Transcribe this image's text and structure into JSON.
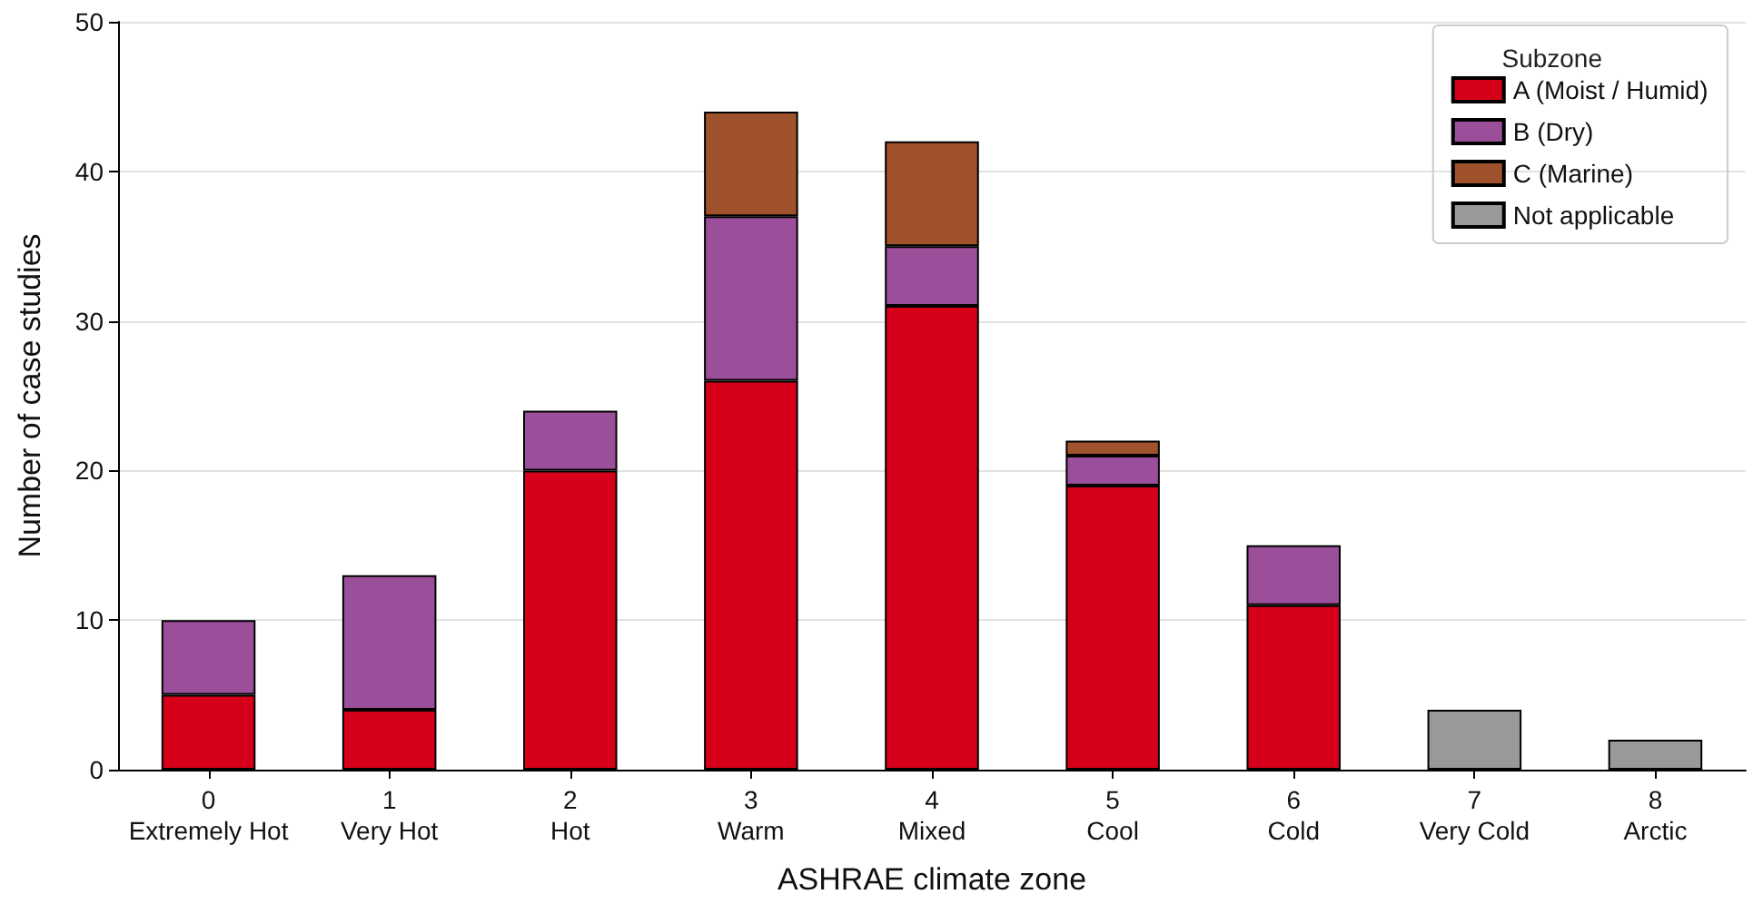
{
  "chart_data": {
    "type": "bar",
    "stacked": true,
    "xlabel": "ASHRAE climate zone",
    "ylabel": "Number of case studies",
    "legend_title": "Subzone",
    "categories": [
      "0\nExtremely Hot",
      "1\nVery Hot",
      "2\nHot",
      "3\nWarm",
      "4\nMixed",
      "5\nCool",
      "6\nCold",
      "7\nVery Cold",
      "8\nArctic"
    ],
    "series": [
      {
        "name": "A (Moist / Humid)",
        "color": "#d7001a",
        "values": [
          5,
          4,
          20,
          26,
          31,
          19,
          11,
          null,
          null
        ]
      },
      {
        "name": "B (Dry)",
        "color": "#9b4f9a",
        "values": [
          5,
          9,
          4,
          11,
          4,
          2,
          4,
          null,
          null
        ]
      },
      {
        "name": "C (Marine)",
        "color": "#a0522d",
        "values": [
          null,
          null,
          null,
          7,
          7,
          1,
          null,
          null,
          null
        ]
      },
      {
        "name": "Not applicable",
        "color": "#999999",
        "values": [
          null,
          null,
          null,
          null,
          null,
          null,
          null,
          4,
          2
        ]
      }
    ],
    "ylim": [
      0,
      50
    ],
    "yticks": [
      0,
      10,
      20,
      30,
      40,
      50
    ],
    "grid": "y",
    "legend": "top right"
  }
}
